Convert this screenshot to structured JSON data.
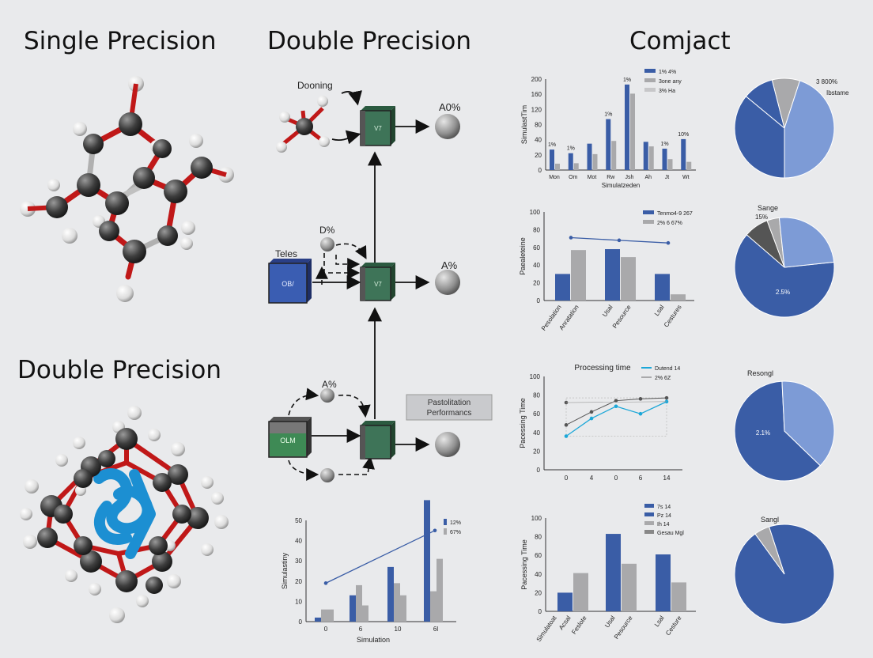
{
  "titles": {
    "single": "Single Precision",
    "double_top": "Double Precision",
    "double_left": "Double Precision",
    "compact": "Comjact"
  },
  "flow": {
    "docking": "Dooning",
    "out1": "A0%",
    "tiles": "Teles",
    "input_box": "OB/",
    "d_pct": "D%",
    "out2": "A%",
    "a_pct": "A%",
    "bottom_box": "OLM",
    "node_label": "V7",
    "perf_box_line1": "Pastolitation",
    "perf_box_line2": "Performancs"
  },
  "colors": {
    "blue": "#3a5da6",
    "gray": "#a9a9ab",
    "lightblue": "#7d9bd6",
    "darkgray": "#555555",
    "green": "#3e7458",
    "cyan": "#1ba7d8"
  },
  "chart_data": [
    {
      "id": "bar-top",
      "type": "bar",
      "ylabel": "SimulastTim",
      "xlabel": "Simulatzeden",
      "ylim": [
        0,
        200
      ],
      "yticks": [
        "200",
        "160",
        "120",
        "80",
        "40",
        "20",
        "0"
      ],
      "categories": [
        "Mon",
        "Om",
        "Mot",
        "Rw",
        "Jsh",
        "Ah",
        "Jt",
        "Wt"
      ],
      "series": [
        {
          "name": "1% 4%",
          "values": [
            45,
            37,
            58,
            112,
            188,
            62,
            47,
            68
          ]
        },
        {
          "name": "3one any",
          "values": [
            14,
            15,
            35,
            64,
            168,
            52,
            24,
            18
          ]
        },
        {
          "name": "3% Ha",
          "values": [
            0,
            0,
            0,
            0,
            0,
            0,
            0,
            0
          ]
        }
      ],
      "labels": [
        "1%",
        "1%",
        "",
        "1%",
        "1%",
        "",
        "1%",
        "10%"
      ]
    },
    {
      "id": "bar-line-2",
      "type": "bar",
      "ylabel": "Paealeteine",
      "ylim": [
        0,
        100
      ],
      "yticks": [
        "100",
        "80",
        "60",
        "40",
        "20",
        "0"
      ],
      "categories": [
        "Pesolation",
        "Anratation",
        "Usal",
        "Pesource",
        "Lsal",
        "Cestures"
      ],
      "groups": [
        [
          30,
          57
        ],
        [
          58,
          49
        ],
        [
          30,
          7
        ]
      ],
      "line": [
        71,
        68,
        65
      ],
      "legend": [
        "Tenmo4-9 267",
        "2% 6 67%"
      ]
    },
    {
      "id": "line-3",
      "type": "line",
      "title": "Processing time",
      "ylabel": "Pacessing Time",
      "ylim": [
        0,
        100
      ],
      "yticks": [
        "100",
        "80",
        "60",
        "40",
        "20",
        "0"
      ],
      "x": [
        "0",
        "4",
        "0",
        "6",
        "14"
      ],
      "series": [
        {
          "name": "Dutend 14",
          "values": [
            36,
            55,
            68,
            60,
            73
          ]
        },
        {
          "name": "2% 6Z",
          "values": [
            48,
            62,
            74,
            76,
            77
          ]
        }
      ],
      "extra": [
        72,
        null,
        null,
        null,
        null
      ]
    },
    {
      "id": "bar-4",
      "type": "bar",
      "ylabel": "Pacessing Time",
      "ylim": [
        0,
        100
      ],
      "yticks": [
        "100",
        "80",
        "60",
        "40",
        "20",
        "0"
      ],
      "categories": [
        "Simulatoat",
        "Acsal",
        "Feslote",
        "Usal",
        "Pesource",
        "Lsal",
        "Cesture"
      ],
      "groups": [
        [
          20,
          41
        ],
        [
          83,
          51
        ],
        [
          61,
          31
        ]
      ],
      "legend": [
        "7s 14",
        "Pz 14",
        "Ih 14",
        "Gesau Mgl"
      ]
    },
    {
      "id": "bar-5",
      "type": "bar",
      "ylabel": "Simulastiny",
      "xlabel": "Simulation",
      "ylim": [
        0,
        50
      ],
      "yticks": [
        "50",
        "40",
        "30",
        "20",
        "10",
        "0"
      ],
      "categories": [
        "0",
        "6",
        "10",
        "6l"
      ],
      "groups": [
        [
          2,
          6,
          6
        ],
        [
          13,
          18,
          8
        ],
        [
          27,
          19,
          13
        ],
        [
          60,
          15,
          31
        ]
      ],
      "line": [
        19,
        null,
        null,
        45
      ],
      "legend": [
        "12%",
        "67%"
      ]
    },
    {
      "id": "pie-1",
      "type": "pie",
      "title": "3 800%",
      "legend": "Ibstame",
      "values": [
        36,
        10,
        9,
        45
      ],
      "colors": [
        "blue",
        "blue",
        "gray",
        "lightblue"
      ]
    },
    {
      "id": "pie-2",
      "type": "pie",
      "title": "Sange",
      "subtitle": "15%",
      "center_label": "2.5%",
      "values": [
        63,
        8,
        4,
        25
      ],
      "colors": [
        "blue",
        "darkgray",
        "gray",
        "lightblue"
      ]
    },
    {
      "id": "pie-3",
      "type": "pie",
      "title": "Resongl",
      "center_label": "2.1%",
      "values": [
        62,
        38
      ],
      "colors": [
        "blue",
        "lightblue"
      ]
    },
    {
      "id": "pie-4",
      "type": "pie",
      "title": "Sangl",
      "values": [
        95,
        5
      ],
      "colors": [
        "blue",
        "gray"
      ]
    }
  ]
}
